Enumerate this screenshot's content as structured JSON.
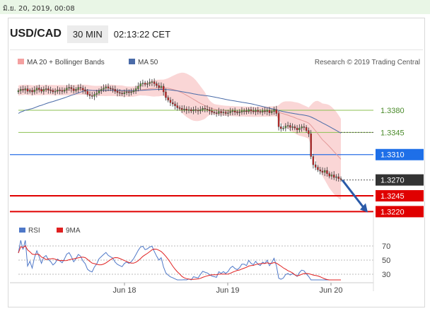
{
  "header": {
    "date_stamp": "มิ.ย. 20, 2019, 00:08",
    "symbol": "USD/CAD",
    "timeframe": "30 MIN",
    "time": "02:13:22 CET"
  },
  "legend": {
    "ma20_bb": "MA 20 + Bollinger Bands",
    "ma50": "MA 50",
    "credit": "Research © 2019 Trading Central",
    "rsi": "RSI",
    "rsi_ma": "9MA"
  },
  "colors": {
    "price_green": "#5a9e3a",
    "price_red": "#cc2222",
    "bollinger_fill": "#f8c8c8",
    "ma20": "#e39a9a",
    "ma50": "#4a6ba8",
    "level_green": "#8cc152",
    "level_blue": "#2a6fe6",
    "level_red": "#e00000",
    "label_blue_bg": "#1e6fe8",
    "label_red_bg": "#e00000",
    "label_dark_bg": "#333333",
    "arrow": "#2a5aa8",
    "rsi_line": "#4f78c8",
    "rsi_ma_line": "#e02020"
  },
  "chart_data": [
    {
      "type": "candlestick",
      "title": "USD/CAD 30 MIN",
      "x_ticks": [
        "Jun 18",
        "Jun 19",
        "Jun 20"
      ],
      "price_levels": [
        {
          "value": 1.338,
          "label": "1.3380",
          "kind": "resistance",
          "color": "green"
        },
        {
          "value": 1.3345,
          "label": "1.3345",
          "kind": "resistance",
          "color": "green"
        },
        {
          "value": 1.331,
          "label": "1.3310",
          "kind": "pivot",
          "color": "blue"
        },
        {
          "value": 1.327,
          "label": "1.3270",
          "kind": "last_price",
          "color": "dark"
        },
        {
          "value": 1.3245,
          "label": "1.3245",
          "kind": "support",
          "color": "red"
        },
        {
          "value": 1.322,
          "label": "1.3220",
          "kind": "support",
          "color": "red"
        }
      ],
      "ylim": [
        1.3208,
        1.343
      ],
      "close_series": [
        1.3411,
        1.3413,
        1.3412,
        1.3414,
        1.341,
        1.3411,
        1.3409,
        1.3412,
        1.3415,
        1.3413,
        1.341,
        1.3413,
        1.3414,
        1.3412,
        1.3411,
        1.3409,
        1.341,
        1.3412,
        1.3411,
        1.341,
        1.3412,
        1.3415,
        1.3416,
        1.3414,
        1.3411,
        1.3413,
        1.3416,
        1.3415,
        1.3412,
        1.341,
        1.3405,
        1.3403,
        1.3402,
        1.3405,
        1.3407,
        1.3411,
        1.3413,
        1.3415,
        1.3417,
        1.3415,
        1.3414,
        1.3413,
        1.341,
        1.3408,
        1.3407,
        1.3406,
        1.3408,
        1.3409,
        1.3408,
        1.3409,
        1.3411,
        1.3414,
        1.3418,
        1.3422,
        1.3423,
        1.3421,
        1.3422,
        1.3424,
        1.3425,
        1.3422,
        1.3419,
        1.3416,
        1.3418,
        1.3409,
        1.34,
        1.3396,
        1.3392,
        1.339,
        1.3387,
        1.3384,
        1.3383,
        1.3381,
        1.3382,
        1.338,
        1.3381,
        1.3379,
        1.3381,
        1.338,
        1.3379,
        1.3381,
        1.3383,
        1.3382,
        1.3381,
        1.3379,
        1.3377,
        1.3376,
        1.3375,
        1.3378,
        1.3376,
        1.3377,
        1.3375,
        1.3376,
        1.3378,
        1.3379,
        1.3377,
        1.3376,
        1.3377,
        1.3379,
        1.3379,
        1.3378,
        1.3381,
        1.3379,
        1.3378,
        1.338,
        1.3378,
        1.3377,
        1.3379,
        1.3378,
        1.338,
        1.3376,
        1.3378,
        1.3381,
        1.3375,
        1.3354,
        1.3351,
        1.3352,
        1.3355,
        1.3356,
        1.3353,
        1.3354,
        1.3352,
        1.3349,
        1.3352,
        1.3354,
        1.3353,
        1.3348,
        1.3343,
        1.3307,
        1.3294,
        1.329,
        1.3286,
        1.3284,
        1.3282,
        1.3285,
        1.328,
        1.3276,
        1.3278,
        1.3274,
        1.3275,
        1.3272,
        1.3271
      ],
      "series": [
        {
          "name": "MA 20 + Bollinger Bands"
        },
        {
          "name": "MA 50"
        }
      ]
    },
    {
      "type": "line",
      "title": "RSI",
      "y_ticks": [
        30,
        50,
        70
      ],
      "ylim": [
        20,
        80
      ],
      "series": [
        {
          "name": "RSI"
        },
        {
          "name": "9MA"
        }
      ]
    }
  ]
}
